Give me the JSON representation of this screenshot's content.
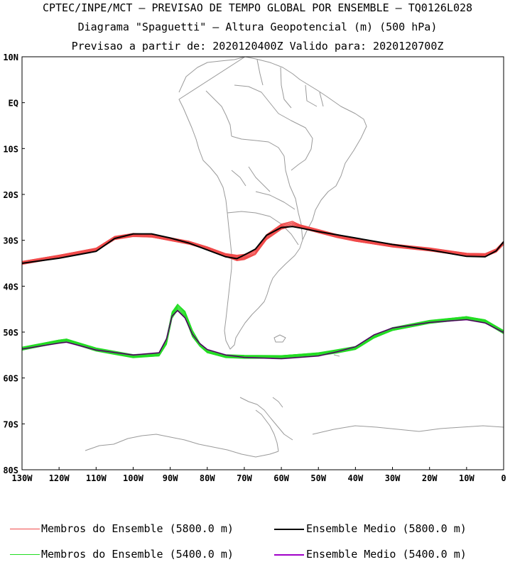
{
  "header": {
    "line1": "CPTEC/INPE/MCT — PREVISAO DE TEMPO GLOBAL POR ENSEMBLE — TQ0126L028",
    "line2": "Diagrama \"Spaguetti\" — Altura Geopotencial (m) (500 hPa)",
    "line3": "Previsao a partir de: 2020120400Z  Valido para: 2020120700Z"
  },
  "colors": {
    "members_5800": "#f04a4a",
    "members_5400": "#22dd22",
    "mean_5800": "#000000",
    "mean_5400": "#a000c8",
    "coast": "#9a9a9a"
  },
  "map": {
    "lat_labels": [
      "10N",
      "EQ",
      "10S",
      "20S",
      "30S",
      "40S",
      "50S",
      "60S",
      "70S",
      "80S"
    ],
    "lon_labels": [
      "130W",
      "120W",
      "110W",
      "100W",
      "90W",
      "80W",
      "70W",
      "60W",
      "50W",
      "40W",
      "30W",
      "20W",
      "10W",
      "0"
    ],
    "lon_range": [
      -130,
      0
    ],
    "lat_range": [
      -80,
      10
    ]
  },
  "legend": {
    "members_5800": "Membros do Ensemble (5800.0 m)",
    "mean_5800": "Ensemble Medio (5800.0 m)",
    "members_5400": "Membros do Ensemble (5400.0 m)",
    "mean_5400": "Ensemble Medio (5400.0 m)"
  },
  "chart_data": {
    "type": "line",
    "series": [
      {
        "name": "Ensemble Medio (5800.0 m)",
        "x": [
          -130,
          -120,
          -110,
          -105,
          -100,
          -95,
          -90,
          -85,
          -80,
          -75,
          -72,
          -70,
          -67,
          -64,
          -60,
          -57,
          -55,
          -50,
          -45,
          -40,
          -30,
          -20,
          -10,
          -5,
          -2,
          0
        ],
        "y": [
          -35.0,
          -33.9,
          -32.4,
          -29.6,
          -28.6,
          -28.6,
          -29.5,
          -30.6,
          -32.1,
          -33.6,
          -34.0,
          -33.2,
          -31.9,
          -28.9,
          -27.2,
          -27.0,
          -27.3,
          -28.1,
          -28.8,
          -29.5,
          -30.9,
          -32.1,
          -33.5,
          -33.6,
          -32.3,
          -30.3
        ]
      },
      {
        "name": "Ensemble Medio (5400.0 m)",
        "x": [
          -130,
          -120,
          -118,
          -110,
          -100,
          -93,
          -91,
          -89.5,
          -88,
          -86,
          -84,
          -82,
          -80,
          -75,
          -70,
          -60,
          -50,
          -45,
          -40,
          -35,
          -30,
          -20,
          -10,
          -5,
          0
        ],
        "y": [
          -53.7,
          -52.4,
          -52.2,
          -53.9,
          -55.0,
          -54.5,
          -51.5,
          -46.5,
          -45.3,
          -46.9,
          -50.5,
          -52.5,
          -53.8,
          -55.0,
          -55.5,
          -55.8,
          -55.2,
          -54.3,
          -53.2,
          -50.6,
          -49.1,
          -47.9,
          -47.3,
          -48.0,
          -50.1
        ]
      }
    ],
    "xlabel": "",
    "ylabel": "",
    "xlim": [
      -130,
      0
    ],
    "ylim": [
      -80,
      10
    ]
  }
}
